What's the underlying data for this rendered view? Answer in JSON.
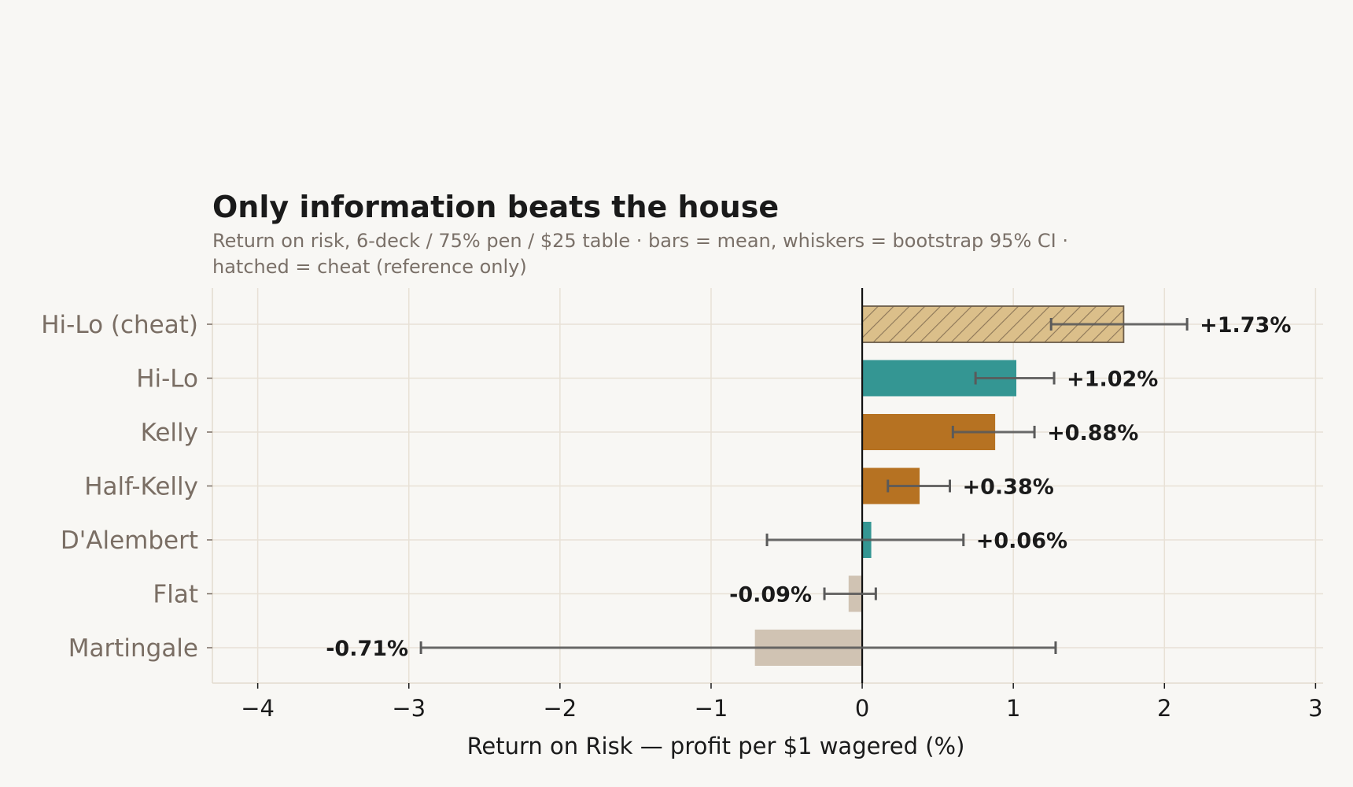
{
  "chart_data": {
    "type": "bar",
    "orientation": "horizontal",
    "title": "Only information beats the house",
    "subtitle_lines": [
      "Return on risk, 6-deck / 75% pen / $25 table · bars = mean, whiskers = bootstrap 95% CI ·",
      "hatched = cheat (reference only)"
    ],
    "xlabel": "Return on Risk  —  profit per $1 wagered  (%)",
    "xlim": [
      -4.3,
      3.05
    ],
    "xticks": [
      -4,
      -3,
      -2,
      -1,
      0,
      1,
      2,
      3
    ],
    "xtick_labels": [
      "−4",
      "−3",
      "−2",
      "−1",
      "0",
      "1",
      "2",
      "3"
    ],
    "grid": true,
    "legend": "none",
    "colors": {
      "background": "#f8f7f4",
      "grid": "#e8e1d6",
      "teal": "#349693",
      "orange": "#b67222",
      "tan": "#d0c3b3",
      "gold": "#dbbf8a",
      "whisker": "#5a5a5a"
    },
    "categories": [
      "Hi-Lo (cheat)",
      "Hi-Lo",
      "Kelly",
      "Half-Kelly",
      "D'Alembert",
      "Flat",
      "Martingale"
    ],
    "values": [
      1.73,
      1.02,
      0.88,
      0.38,
      0.06,
      -0.09,
      -0.71
    ],
    "ci_low": [
      1.25,
      0.75,
      0.6,
      0.17,
      -0.63,
      -0.25,
      -2.92
    ],
    "ci_high": [
      2.15,
      1.27,
      1.14,
      0.58,
      0.67,
      0.09,
      1.28
    ],
    "bar_colors": [
      "gold",
      "teal",
      "orange",
      "orange",
      "teal",
      "tan",
      "tan"
    ],
    "hatched": [
      true,
      false,
      false,
      false,
      false,
      false,
      false
    ],
    "data_labels": [
      "+1.73%",
      "+1.02%",
      "+0.88%",
      "+0.38%",
      "+0.06%",
      "-0.09%",
      "-0.71%"
    ]
  }
}
